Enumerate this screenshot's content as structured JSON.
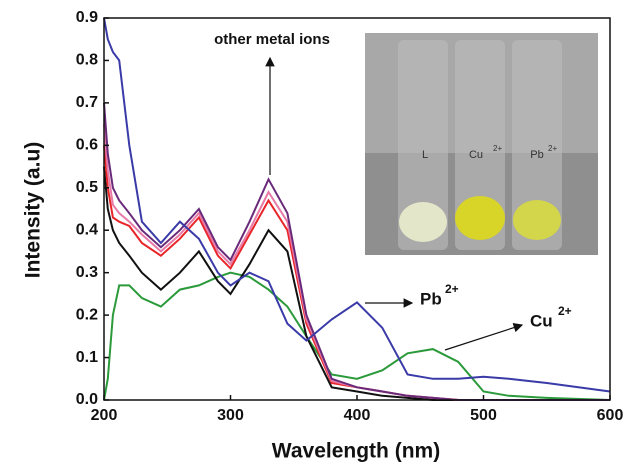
{
  "chart_data": {
    "type": "line",
    "xlabel": "Wavelength (nm)",
    "ylabel": "Intensity (a.u)",
    "x": [
      200,
      203,
      207,
      212,
      220,
      230,
      245,
      260,
      275,
      290,
      300,
      315,
      330,
      345,
      360,
      380,
      400,
      420,
      440,
      460,
      480,
      500,
      520,
      550,
      600
    ],
    "series": [
      {
        "color": "#2b9a3a",
        "values": [
          0,
          0.05,
          0.2,
          0.27,
          0.27,
          0.24,
          0.22,
          0.26,
          0.27,
          0.29,
          0.3,
          0.29,
          0.26,
          0.22,
          0.15,
          0.06,
          0.05,
          0.07,
          0.11,
          0.12,
          0.09,
          0.02,
          0.01,
          0.005,
          0
        ]
      },
      {
        "color": "#111111",
        "values": [
          0.55,
          0.45,
          0.4,
          0.37,
          0.34,
          0.3,
          0.26,
          0.3,
          0.35,
          0.28,
          0.25,
          0.32,
          0.4,
          0.35,
          0.15,
          0.03,
          0.02,
          0.01,
          0.005,
          0,
          0,
          0,
          0,
          0,
          0
        ]
      },
      {
        "color": "#e8262a",
        "values": [
          0.6,
          0.5,
          0.43,
          0.42,
          0.41,
          0.37,
          0.34,
          0.38,
          0.43,
          0.34,
          0.31,
          0.39,
          0.47,
          0.4,
          0.18,
          0.04,
          0.03,
          0.02,
          0.01,
          0.005,
          0,
          0,
          0,
          0,
          0
        ]
      },
      {
        "color": "#e87aa8",
        "values": [
          0.65,
          0.54,
          0.46,
          0.44,
          0.42,
          0.39,
          0.35,
          0.39,
          0.44,
          0.35,
          0.32,
          0.4,
          0.49,
          0.42,
          0.19,
          0.045,
          0.03,
          0.02,
          0.01,
          0.005,
          0,
          0,
          0,
          0,
          0
        ]
      },
      {
        "color": "#6a2a7a",
        "values": [
          0.7,
          0.58,
          0.5,
          0.47,
          0.44,
          0.4,
          0.36,
          0.4,
          0.45,
          0.36,
          0.33,
          0.42,
          0.52,
          0.44,
          0.2,
          0.05,
          0.03,
          0.02,
          0.01,
          0.005,
          0,
          0,
          0,
          0,
          0
        ]
      },
      {
        "color": "#3a3aa8",
        "values": [
          0.9,
          0.85,
          0.82,
          0.8,
          0.6,
          0.42,
          0.37,
          0.42,
          0.38,
          0.3,
          0.27,
          0.3,
          0.28,
          0.18,
          0.14,
          0.19,
          0.23,
          0.17,
          0.06,
          0.05,
          0.05,
          0.055,
          0.05,
          0.04,
          0.02
        ]
      }
    ],
    "xlim": [
      200,
      600
    ],
    "xticks": [
      200,
      300,
      400,
      500,
      600
    ],
    "ylim": [
      0,
      0.9
    ],
    "yticks": [
      {
        "value": 0,
        "label": "0.0"
      },
      0.1,
      0.2,
      0.3,
      0.4,
      0.5,
      0.6,
      0.7,
      0.8,
      0.9
    ],
    "annotations": {
      "other": "other metal ions",
      "pb": "Pb",
      "pb_sup": "2+",
      "cu": "Cu",
      "cu_sup": "2+"
    },
    "inset_labels": {
      "l": "L",
      "cu": "Cu",
      "cu_sup": "2+",
      "pb": "Pb",
      "pb_sup": "2+"
    }
  }
}
